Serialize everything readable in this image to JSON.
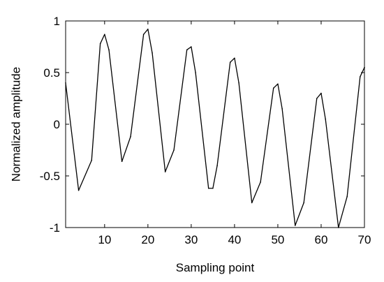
{
  "chart_data": {
    "type": "line",
    "xlabel": "Sampling point",
    "ylabel": "Normalized amplitude",
    "xlim": [
      1,
      70
    ],
    "ylim": [
      -1,
      1
    ],
    "xticks": [
      10,
      20,
      30,
      40,
      50,
      60,
      70
    ],
    "xtick_labels": [
      "10",
      "20",
      "30",
      "40",
      "50",
      "60",
      "70"
    ],
    "yticks": [
      -1,
      -0.5,
      0,
      0.5,
      1
    ],
    "ytick_labels": [
      "-1",
      "-0.5",
      "0",
      "0.5",
      "1"
    ],
    "grid": false,
    "legend": "none",
    "series": [
      {
        "color": "#000000",
        "x": [
          1,
          4,
          7,
          9,
          10,
          11,
          14,
          16,
          19,
          20,
          21,
          24,
          26,
          29,
          30,
          31,
          34,
          35,
          36,
          39,
          40,
          41,
          44,
          46,
          49,
          50,
          51,
          54,
          56,
          59,
          60,
          61,
          64,
          66,
          69,
          70
        ],
        "y": [
          0.4,
          -0.64,
          -0.35,
          0.78,
          0.87,
          0.72,
          -0.36,
          -0.12,
          0.87,
          0.92,
          0.69,
          -0.46,
          -0.25,
          0.72,
          0.75,
          0.5,
          -0.62,
          -0.62,
          -0.4,
          0.6,
          0.64,
          0.4,
          -0.76,
          -0.56,
          0.35,
          0.39,
          0.15,
          -0.98,
          -0.76,
          0.25,
          0.3,
          0.05,
          -1.0,
          -0.7,
          0.46,
          0.55
        ]
      }
    ]
  }
}
